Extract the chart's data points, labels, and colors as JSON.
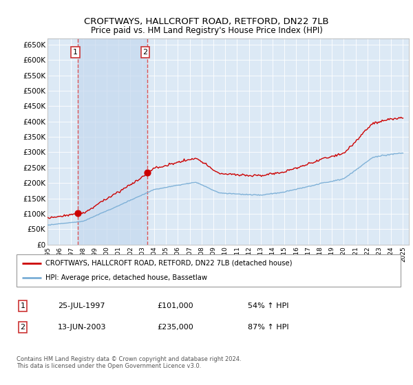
{
  "title": "CROFTWAYS, HALLCROFT ROAD, RETFORD, DN22 7LB",
  "subtitle": "Price paid vs. HM Land Registry's House Price Index (HPI)",
  "ylim": [
    0,
    670000
  ],
  "yticks": [
    0,
    50000,
    100000,
    150000,
    200000,
    250000,
    300000,
    350000,
    400000,
    450000,
    500000,
    550000,
    600000,
    650000
  ],
  "xlim_start": 1995.0,
  "xlim_end": 2025.5,
  "background_color": "#ffffff",
  "plot_bg_color": "#dce9f5",
  "grid_color": "#c8d8e8",
  "shade_color": "#c5d8ee",
  "transaction1": {
    "date_num": 1997.565,
    "price": 101000,
    "label": "1",
    "percent": "54%",
    "date_str": "25-JUL-1997"
  },
  "transaction2": {
    "date_num": 2003.45,
    "price": 235000,
    "label": "2",
    "percent": "87%",
    "date_str": "13-JUN-2003"
  },
  "red_line_color": "#cc0000",
  "blue_line_color": "#7aaed6",
  "dashed_line_color": "#dd4444",
  "legend_red_label": "CROFTWAYS, HALLCROFT ROAD, RETFORD, DN22 7LB (detached house)",
  "legend_blue_label": "HPI: Average price, detached house, Bassetlaw",
  "footer": "Contains HM Land Registry data © Crown copyright and database right 2024.\nThis data is licensed under the Open Government Licence v3.0."
}
